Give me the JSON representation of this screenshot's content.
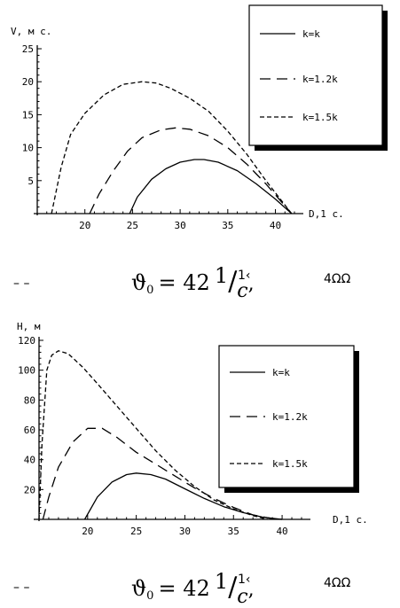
{
  "chart_data": [
    {
      "type": "line",
      "ylabel": "V, м с.",
      "xlabel": "D,1 c.",
      "xlim": [
        15,
        42
      ],
      "ylim": [
        0,
        25
      ],
      "xticks": [
        20,
        25,
        30,
        35,
        40
      ],
      "yticks": [
        5,
        10,
        15,
        20,
        25
      ],
      "legend_position": "top-right",
      "series": [
        {
          "name": "k=k",
          "style": "solid",
          "x": [
            24.7,
            25.5,
            27,
            28.5,
            30,
            31.5,
            32.5,
            34,
            36,
            38,
            40,
            41.7
          ],
          "y": [
            0,
            2.5,
            5.2,
            6.8,
            7.8,
            8.2,
            8.2,
            7.8,
            6.5,
            4.5,
            2.2,
            0
          ]
        },
        {
          "name": "k=1.2k",
          "style": "dashed",
          "x": [
            20.5,
            21.5,
            23,
            24.5,
            26,
            28,
            29.5,
            31,
            33,
            35,
            37,
            39,
            41.7
          ],
          "y": [
            0,
            3,
            6.5,
            9.5,
            11.5,
            12.7,
            13,
            12.8,
            11.8,
            10,
            7.5,
            4.5,
            0
          ]
        },
        {
          "name": "k=1.5k",
          "style": "short-dashed",
          "x": [
            16.5,
            17.5,
            18.5,
            20,
            22,
            24,
            26,
            27.5,
            29,
            31,
            33,
            35,
            37,
            39,
            41.7
          ],
          "y": [
            0,
            7,
            12,
            15.2,
            18,
            19.6,
            20,
            19.8,
            19,
            17.5,
            15.5,
            12.5,
            9,
            5,
            0
          ]
        }
      ]
    },
    {
      "type": "line",
      "ylabel": "H, м",
      "xlabel": "D,1 c.",
      "xlim": [
        15,
        42
      ],
      "ylim": [
        0,
        120
      ],
      "xticks": [
        20,
        25,
        30,
        35,
        40
      ],
      "yticks": [
        20,
        40,
        60,
        80,
        100,
        120
      ],
      "legend_position": "right",
      "series": [
        {
          "name": "k=k",
          "style": "solid",
          "x": [
            19.7,
            21,
            22.5,
            24,
            25,
            26.5,
            28,
            30,
            32,
            34,
            36,
            38,
            40
          ],
          "y": [
            0,
            15,
            25,
            30,
            31,
            30,
            27,
            20.5,
            14,
            8.5,
            4.5,
            1.5,
            0
          ]
        },
        {
          "name": "k=1.2k",
          "style": "dashed",
          "x": [
            15.4,
            16,
            17,
            18.5,
            20,
            21.5,
            23,
            25,
            27,
            29,
            31,
            33,
            35,
            37,
            39,
            40
          ],
          "y": [
            0,
            15,
            35,
            52,
            61,
            61,
            55,
            45,
            37,
            29,
            21,
            14,
            8,
            3,
            0.5,
            0
          ]
        },
        {
          "name": "k=1.5k",
          "style": "short-dashed",
          "x": [
            15.0,
            15.3,
            15.8,
            16.3,
            17,
            18,
            19.5,
            21,
            23,
            25,
            27,
            29,
            31,
            33,
            35,
            37,
            38.5
          ],
          "y": [
            0,
            50,
            100,
            110,
            113,
            111,
            102,
            91,
            76,
            61,
            46,
            33,
            22,
            13,
            7,
            2.5,
            0
          ]
        }
      ]
    }
  ],
  "captions": [
    {
      "symbol": "ϑ",
      "sub": "0",
      "eq": "= 42",
      "num": "1",
      "den": "c",
      "tail": ","
    },
    {
      "symbol": "ϑ",
      "sub": "0",
      "eq": "= 42",
      "num": "1",
      "den": "c",
      "tail": ","
    }
  ],
  "cut_text": [
    {
      "a": "– –",
      "b": "1‹",
      "c": "4ΩΩ"
    },
    {
      "a": "– –",
      "b": "1‹",
      "c": "4ΩΩ"
    }
  ]
}
